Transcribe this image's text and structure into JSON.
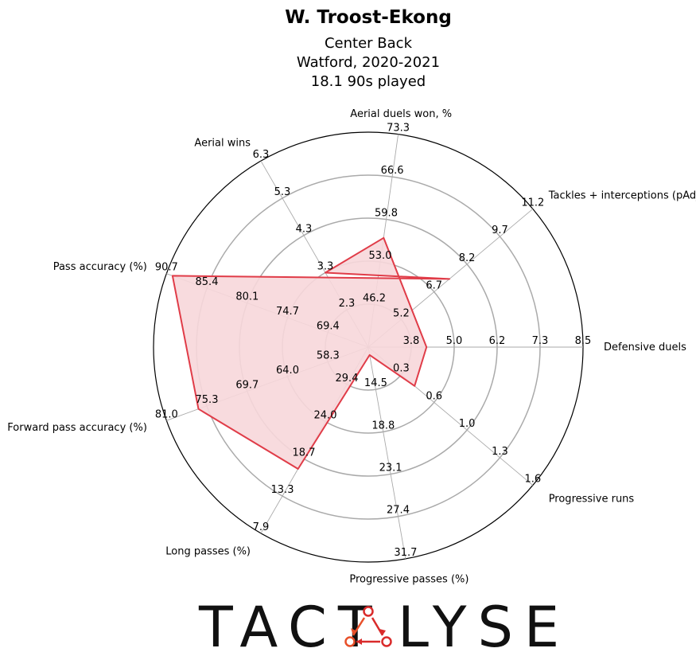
{
  "header": {
    "player_name": "W. Troost-Ekong",
    "position": "Center Back",
    "team_season": "Watford, 2020-2021",
    "minutes_played": "18.1 90s played"
  },
  "brand": {
    "logo_left": "TACT",
    "logo_right": "LYSE",
    "logo_text": "TACTALYSE"
  },
  "colors": {
    "accent": "#e03c48",
    "fill": "#f7d7da",
    "grid": "#aaaaaa",
    "logo_icon": "#e8502a",
    "logo_node": "#d92b2b"
  },
  "chart_data": {
    "type": "radar",
    "rings": 5,
    "axes": [
      {
        "label": "Defensive duels",
        "ticks": [
          "3.8",
          "5.0",
          "6.2",
          "7.3",
          "8.5"
        ],
        "min": 2.6,
        "max": 8.5,
        "value": 4.2
      },
      {
        "label": "Aerial duels won, %",
        "ticks": [
          "46.2",
          "53.0",
          "59.8",
          "66.6",
          "73.3"
        ],
        "min": 39.4,
        "max": 73.3,
        "value": 56.8
      },
      {
        "label": "Aerial wins",
        "ticks": [
          "2.3",
          "3.3",
          "4.3",
          "5.3",
          "6.3"
        ],
        "min": 1.3,
        "max": 6.3,
        "value": 3.3
      },
      {
        "label": "Tackles + interceptions (pAdj)",
        "ticks": [
          "5.2",
          "6.7",
          "8.2",
          "9.7",
          "11.2"
        ],
        "min": 3.7,
        "max": 11.2,
        "value": 7.4
      },
      {
        "label": "Pass accuracy (%)",
        "ticks": [
          "69.4",
          "74.7",
          "80.1",
          "85.4",
          "90.7"
        ],
        "min": 64.1,
        "max": 90.7,
        "value": 89.9
      },
      {
        "label": "Forward pass accuracy (%)",
        "ticks": [
          "58.3",
          "64.0",
          "69.7",
          "75.3",
          "81.0"
        ],
        "min": 52.6,
        "max": 81.0,
        "value": 76.5
      },
      {
        "label": "Long passes (%)",
        "ticks": [
          "29.4",
          "24.0",
          "18.7",
          "13.3",
          "7.9"
        ],
        "min": 34.8,
        "max": 7.9,
        "value": 17.2
      },
      {
        "label": "Progressive passes (%)",
        "ticks": [
          "14.5",
          "18.8",
          "23.1",
          "27.4",
          "31.7"
        ],
        "min": 10.2,
        "max": 31.7,
        "value": 11.0
      },
      {
        "label": "Progressive runs",
        "ticks": [
          "0.3",
          "0.6",
          "1.0",
          "1.3",
          "1.6"
        ],
        "min": 0.0,
        "max": 1.6,
        "value": 0.45
      }
    ]
  }
}
